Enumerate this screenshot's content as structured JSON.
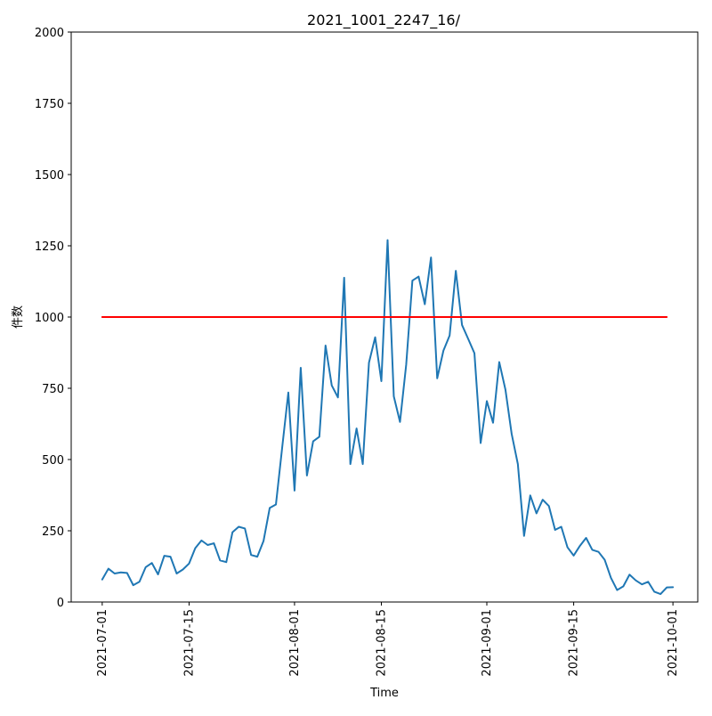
{
  "chart_data": {
    "type": "line",
    "title": "2021_1001_2247_16/",
    "xlabel": "Time",
    "ylabel": "件数",
    "xlim": [
      "2021-06-26",
      "2021-10-05"
    ],
    "ylim": [
      0,
      2000
    ],
    "yticks": [
      0,
      250,
      500,
      750,
      1000,
      1250,
      1500,
      1750,
      2000
    ],
    "xticks": [
      "2021-07-01",
      "2021-07-15",
      "2021-08-01",
      "2021-08-15",
      "2021-09-01",
      "2021-09-15",
      "2021-10-01"
    ],
    "grid": false,
    "series": [
      {
        "color": "#1f77b4",
        "x": [
          "2021-07-01",
          "2021-07-02",
          "2021-07-03",
          "2021-07-04",
          "2021-07-05",
          "2021-07-06",
          "2021-07-07",
          "2021-07-08",
          "2021-07-09",
          "2021-07-10",
          "2021-07-11",
          "2021-07-12",
          "2021-07-13",
          "2021-07-14",
          "2021-07-15",
          "2021-07-16",
          "2021-07-17",
          "2021-07-18",
          "2021-07-19",
          "2021-07-20",
          "2021-07-21",
          "2021-07-22",
          "2021-07-23",
          "2021-07-24",
          "2021-07-25",
          "2021-07-26",
          "2021-07-27",
          "2021-07-28",
          "2021-07-29",
          "2021-07-30",
          "2021-07-31",
          "2021-08-01",
          "2021-08-02",
          "2021-08-03",
          "2021-08-04",
          "2021-08-05",
          "2021-08-06",
          "2021-08-07",
          "2021-08-08",
          "2021-08-09",
          "2021-08-10",
          "2021-08-11",
          "2021-08-12",
          "2021-08-13",
          "2021-08-14",
          "2021-08-15",
          "2021-08-16",
          "2021-08-17",
          "2021-08-18",
          "2021-08-19",
          "2021-08-20",
          "2021-08-21",
          "2021-08-22",
          "2021-08-23",
          "2021-08-24",
          "2021-08-25",
          "2021-08-26",
          "2021-08-27",
          "2021-08-28",
          "2021-08-29",
          "2021-08-30",
          "2021-08-31",
          "2021-09-01",
          "2021-09-02",
          "2021-09-03",
          "2021-09-04",
          "2021-09-05",
          "2021-09-06",
          "2021-09-07",
          "2021-09-08",
          "2021-09-09",
          "2021-09-10",
          "2021-09-11",
          "2021-09-12",
          "2021-09-13",
          "2021-09-14",
          "2021-09-15",
          "2021-09-16",
          "2021-09-17",
          "2021-09-18",
          "2021-09-19",
          "2021-09-20",
          "2021-09-21",
          "2021-09-22",
          "2021-09-23",
          "2021-09-24",
          "2021-09-25",
          "2021-09-26",
          "2021-09-27",
          "2021-09-28",
          "2021-09-29",
          "2021-09-30",
          "2021-10-01"
        ],
        "y": [
          79,
          117,
          100,
          104,
          102,
          59,
          71,
          122,
          137,
          97,
          162,
          159,
          100,
          114,
          135,
          189,
          216,
          200,
          206,
          146,
          140,
          245,
          264,
          258,
          165,
          159,
          214,
          330,
          342,
          540,
          735,
          391,
          822,
          444,
          564,
          580,
          900,
          760,
          718,
          1138,
          484,
          609,
          484,
          840,
          929,
          775,
          1270,
          722,
          632,
          833,
          1128,
          1142,
          1045,
          1209,
          785,
          882,
          935,
          1162,
          972,
          923,
          873,
          558,
          705,
          629,
          842,
          745,
          590,
          484,
          232,
          374,
          311,
          359,
          337,
          253,
          264,
          192,
          163,
          197,
          225,
          183,
          176,
          148,
          85,
          42,
          55,
          96,
          76,
          62,
          71,
          36,
          28,
          51,
          52
        ]
      },
      {
        "color": "#ff0000",
        "x": [
          "2021-07-01",
          "2021-09-30"
        ],
        "y": [
          1000,
          1000
        ]
      }
    ]
  }
}
